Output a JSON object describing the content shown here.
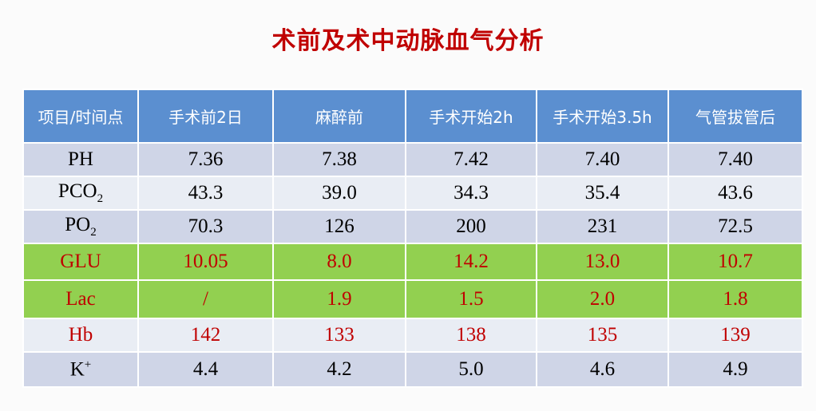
{
  "title": "术前及术中动脉血气分析",
  "table": {
    "header": [
      "项目/时间点",
      "手术前2日",
      "麻醉前",
      "手术开始2h",
      "手术开始3.5h",
      "气管拔管后"
    ],
    "rows": [
      {
        "label": {
          "text": "PH"
        },
        "cells": [
          "7.36",
          "7.38",
          "7.42",
          "7.40",
          "7.40"
        ],
        "fill": "#cfd5e7",
        "text_color": "#000000"
      },
      {
        "label": {
          "text": "PCO",
          "sub": "2"
        },
        "cells": [
          "43.3",
          "39.0",
          "34.3",
          "35.4",
          "43.6"
        ],
        "fill": "#e9edf4",
        "text_color": "#000000"
      },
      {
        "label": {
          "text": "PO",
          "sub": "2"
        },
        "cells": [
          "70.3",
          "126",
          "200",
          "231",
          "72.5"
        ],
        "fill": "#cfd5e7",
        "text_color": "#000000"
      },
      {
        "label": {
          "text": "GLU"
        },
        "cells": [
          "10.05",
          "8.0",
          "14.2",
          "13.0",
          "10.7"
        ],
        "fill": "#92d050",
        "text_color": "#c00000"
      },
      {
        "label": {
          "text": "Lac"
        },
        "cells": [
          "/",
          "1.9",
          "1.5",
          "2.0",
          "1.8"
        ],
        "fill": "#92d050",
        "text_color": "#c00000"
      },
      {
        "label": {
          "text": "Hb"
        },
        "cells": [
          "142",
          "133",
          "138",
          "135",
          "139"
        ],
        "fill": "#e9edf4",
        "text_color": "#c00000"
      },
      {
        "label": {
          "text": "K",
          "sup": "+"
        },
        "cells": [
          "4.4",
          "4.2",
          "5.0",
          "4.6",
          "4.9"
        ],
        "fill": "#cfd5e7",
        "text_color": "#000000"
      }
    ]
  }
}
